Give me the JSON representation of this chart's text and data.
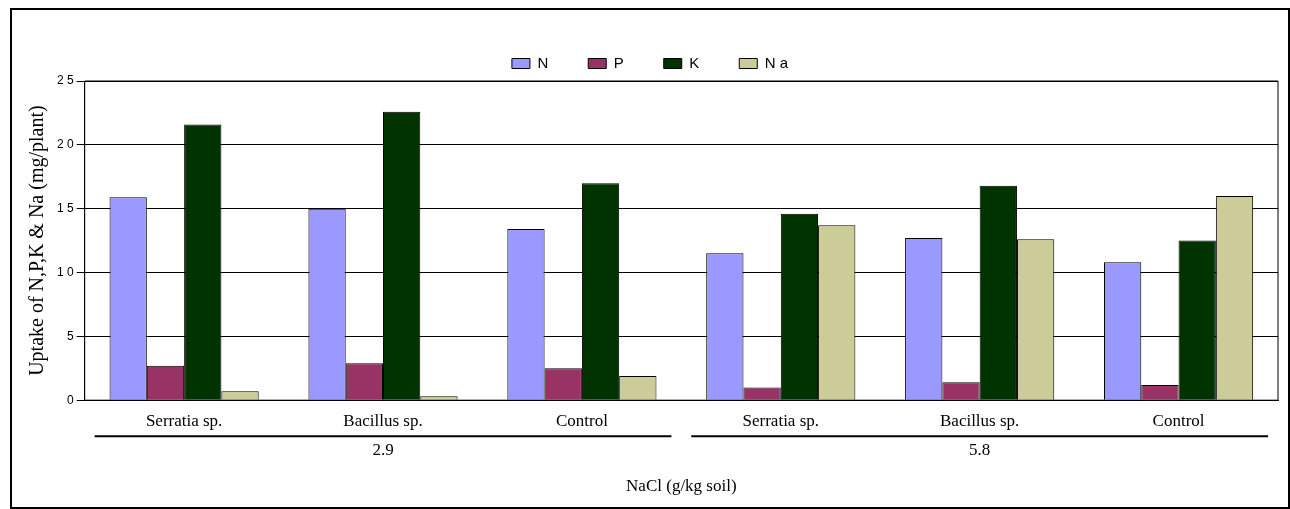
{
  "chart_data": {
    "type": "bar",
    "ylabel": "Uptake of N,P,K & Na (mg/plant)",
    "xlabel": "NaCl (g/kg soil)",
    "categories": [
      "Serratia sp.",
      "Bacillus sp.",
      "Control",
      "Serratia sp.",
      "Bacillus sp.",
      "Control"
    ],
    "series": [
      {
        "name": "N",
        "color": "#9999ff",
        "values": [
          15.9,
          15.0,
          13.4,
          11.5,
          12.7,
          10.8
        ]
      },
      {
        "name": "P",
        "color": "#993366",
        "values": [
          2.7,
          2.9,
          2.5,
          1.0,
          1.4,
          1.2
        ]
      },
      {
        "name": "K",
        "color": "#003300",
        "values": [
          21.6,
          22.6,
          17.0,
          14.6,
          16.8,
          12.5
        ]
      },
      {
        "name": "N a",
        "color": "#cccc99",
        "values": [
          0.7,
          0.3,
          1.9,
          13.7,
          12.6,
          16.0
        ]
      }
    ],
    "ylim": [
      0,
      25
    ],
    "yticks": [
      0,
      5,
      {
        "value": 10,
        "label": "1 0"
      },
      {
        "value": 15,
        "label": "1 5"
      },
      {
        "value": 20,
        "label": "2 0"
      },
      {
        "value": 25,
        "label": "2 5"
      }
    ],
    "annotations": [
      "2.9",
      "5.8"
    ],
    "grid": "y",
    "legend": "top"
  }
}
